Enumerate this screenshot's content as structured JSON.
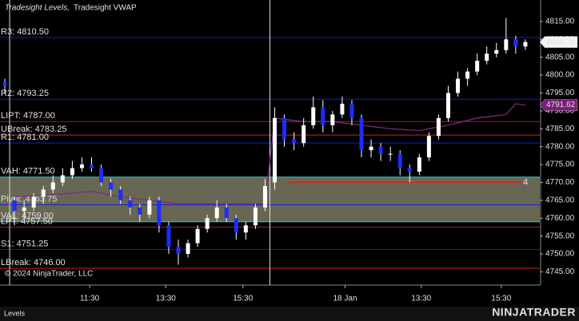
{
  "chart_data": {
    "type": "candlestick",
    "title": "Tradesight Levels,",
    "subtitle": "Tradesight VWAP",
    "copyright": "© 2024 NinjaTrader, LLC",
    "tab": "Levels",
    "logo": "NINJATRADER",
    "up_color": "#ffffff",
    "down_color": "#1e2cff",
    "x": [
      0,
      1,
      2,
      3,
      4,
      5,
      6,
      7,
      8,
      9,
      10,
      11,
      12,
      13,
      14,
      15,
      16,
      17,
      18,
      19,
      20,
      21,
      22,
      23,
      24,
      25,
      26,
      27,
      28,
      29,
      30,
      31,
      32,
      33,
      34,
      35,
      36,
      37,
      38,
      39,
      40,
      41,
      42,
      43,
      44,
      45,
      46,
      47,
      48,
      49,
      50,
      51,
      52,
      53,
      54
    ],
    "opens": [
      4798,
      4765,
      4762,
      4763,
      4766,
      4768,
      4770,
      4772,
      4774,
      4775,
      4774,
      4770,
      4768,
      4765,
      4763,
      4761,
      4765,
      4758,
      4752,
      4750,
      4753,
      4757,
      4760,
      4763,
      4760,
      4756,
      4758,
      4763,
      4770,
      4788,
      4782,
      4781,
      4786,
      4791,
      4786,
      4789,
      4792,
      4788,
      4779,
      4780,
      4778,
      4778,
      4774,
      4773,
      4777,
      4783,
      4788,
      4795,
      4799,
      4801,
      4804,
      4806,
      4807,
      4810,
      4808
    ],
    "highs": [
      4799,
      4766,
      4765,
      4767,
      4769,
      4772,
      4774,
      4776,
      4777,
      4777,
      4775,
      4771,
      4769,
      4766,
      4764,
      4766,
      4766,
      4759,
      4754,
      4754,
      4758,
      4761,
      4765,
      4764,
      4761,
      4759,
      4764,
      4771,
      4791,
      4789,
      4784,
      4788,
      4794,
      4793,
      4790,
      4794,
      4793,
      4789,
      4782,
      4781,
      4780,
      4779,
      4775,
      4778,
      4784,
      4789,
      4797,
      4801,
      4802,
      4806,
      4808,
      4809,
      4816,
      4811,
      4810
    ],
    "lows": [
      4795,
      4758,
      4760,
      4762,
      4764,
      4767,
      4769,
      4771,
      4773,
      4773,
      4769,
      4766,
      4764,
      4761,
      4759,
      4760,
      4756,
      4750,
      4747,
      4749,
      4752,
      4756,
      4759,
      4759,
      4754,
      4754,
      4757,
      4762,
      4768,
      4780,
      4779,
      4780,
      4785,
      4784,
      4784,
      4788,
      4786,
      4777,
      4777,
      4776,
      4776,
      4772,
      4770,
      4772,
      4776,
      4782,
      4787,
      4794,
      4797,
      4800,
      4803,
      4805,
      4806,
      4806,
      4807
    ],
    "closes": [
      4797,
      4762,
      4763,
      4766,
      4768,
      4770,
      4772,
      4774,
      4775,
      4774,
      4770,
      4768,
      4765,
      4763,
      4761,
      4765,
      4758,
      4752,
      4750,
      4753,
      4757,
      4760,
      4763,
      4760,
      4756,
      4758,
      4763,
      4769,
      4788,
      4782,
      4781,
      4786,
      4791,
      4786,
      4789,
      4792,
      4788,
      4779,
      4780,
      4778,
      4778,
      4774,
      4773,
      4777,
      4783,
      4788,
      4795,
      4799,
      4801,
      4804,
      4806,
      4807,
      4810,
      4808,
      4809.25
    ],
    "vwap": {
      "color": "#7a2a7a",
      "x": [
        1,
        5,
        9,
        12,
        15,
        18,
        21,
        24,
        27,
        28,
        31,
        34,
        37,
        40,
        43,
        46,
        49,
        52,
        53,
        54
      ],
      "values": [
        4766,
        4766.5,
        4767.5,
        4766,
        4765,
        4764,
        4764,
        4764,
        4764,
        4788,
        4787,
        4787,
        4786,
        4785,
        4784.5,
        4786,
        4788,
        4789,
        4792,
        4791.62
      ]
    },
    "levels": [
      {
        "label": "R3: 4810.50",
        "value": 4810.5,
        "color": "#1b1bd0"
      },
      {
        "label": "R2: 4793.25",
        "value": 4793.25,
        "color": "#1b1bd0"
      },
      {
        "label": "LIPT: 4787.00",
        "value": 4787,
        "color": "#a02020"
      },
      {
        "label": "UBreak: 4783.25",
        "value": 4783.25,
        "color": "#d02020"
      },
      {
        "label": "R1: 4781.00",
        "value": 4781,
        "color": "#1b1bd0"
      },
      {
        "label": "VAH: 4771.50",
        "value": 4771.5,
        "color": "#40c0c8"
      },
      {
        "label": "Pivot: 4763.75",
        "value": 4763.75,
        "color": "#1b1bd0"
      },
      {
        "label": "VAL: 4759.00",
        "value": 4759,
        "color": "#40c0c8"
      },
      {
        "label": "LPT: 4757.50",
        "value": 4757.5,
        "color": "#a02020"
      },
      {
        "label": "S1: 4751.25",
        "value": 4751.25,
        "color": "#1b1bd0"
      },
      {
        "label": "LBreak: 4746.00",
        "value": 4746,
        "color": "#d02020"
      }
    ],
    "value_area": {
      "high": 4771.5,
      "low": 4759,
      "color": "#8a8a70"
    },
    "marker_line": {
      "value": 4770,
      "label": "4",
      "x": [
        30,
        55
      ],
      "color": "#d02020"
    },
    "session_breaks": [
      1,
      28
    ],
    "last_price": 4809.25,
    "vwap_last": 4791.62,
    "xlim": [
      0,
      56
    ],
    "ylim": [
      4741.3,
      4821
    ],
    "xticks": [
      {
        "value": 9.3,
        "label": "11:30"
      },
      {
        "value": 17.2,
        "label": "13:30"
      },
      {
        "value": 25.2,
        "label": "15:30"
      },
      {
        "value": 35.8,
        "label": "18 Jan"
      },
      {
        "value": 43.7,
        "label": "13:30"
      },
      {
        "value": 52.0,
        "label": "15:30"
      }
    ],
    "yticks": [
      {
        "value": 4815,
        "label": "4815.00"
      },
      {
        "value": 4810,
        "label": "4810.00"
      },
      {
        "value": 4805,
        "label": "4805.00"
      },
      {
        "value": 4800,
        "label": "4800.00"
      },
      {
        "value": 4795,
        "label": "4795.00"
      },
      {
        "value": 4790,
        "label": "4790.00"
      },
      {
        "value": 4785,
        "label": "4785.00"
      },
      {
        "value": 4780,
        "label": "4780.00"
      },
      {
        "value": 4775,
        "label": "4775.00"
      },
      {
        "value": 4770,
        "label": "4770.00"
      },
      {
        "value": 4765,
        "label": "4765.00"
      },
      {
        "value": 4760,
        "label": "4760.00"
      },
      {
        "value": 4755,
        "label": "4755.00"
      },
      {
        "value": 4750,
        "label": "4750.00"
      },
      {
        "value": 4745,
        "label": "4745.00"
      }
    ]
  }
}
